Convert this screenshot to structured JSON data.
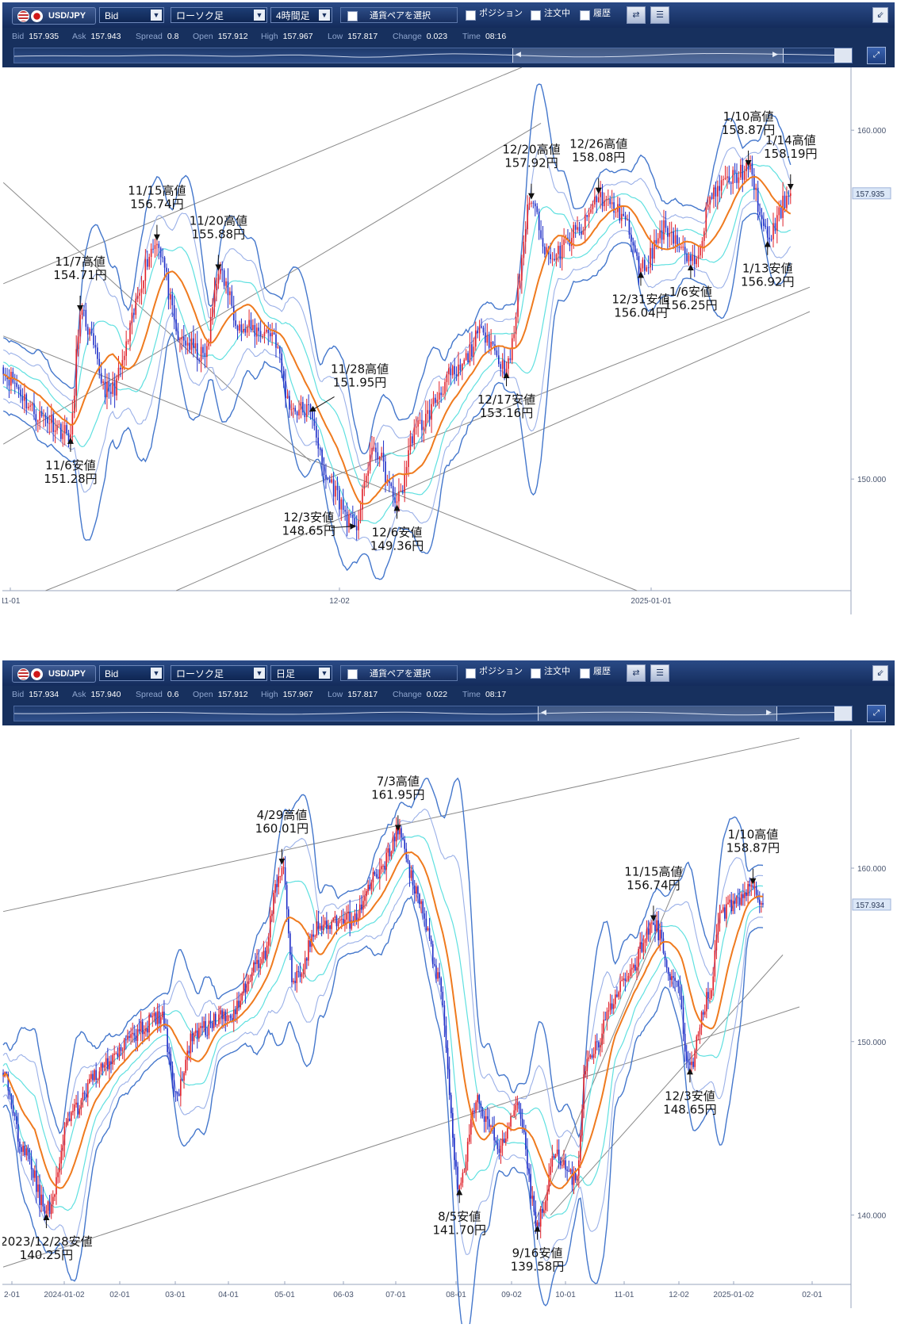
{
  "panels": [
    {
      "toolbar": {
        "pair": "USD/JPY",
        "price_type": "Bid",
        "chart_type": "ローソク足",
        "timeframe": "4時間足",
        "pair_select_button": "通貨ペアを選択",
        "checks": [
          "ポジション",
          "注文中",
          "履歴"
        ]
      },
      "quote": {
        "bid_label": "Bid",
        "bid": "157.935",
        "ask_label": "Ask",
        "ask": "157.943",
        "spread_label": "Spread",
        "spread": "0.8",
        "open_label": "Open",
        "open": "157.912",
        "high_label": "High",
        "high": "157.967",
        "low_label": "Low",
        "low": "157.817",
        "change_label": "Change",
        "change": "0.023",
        "time_label": "Time",
        "time": "08:16"
      },
      "current_price_label": "157.935"
    },
    {
      "toolbar": {
        "pair": "USD/JPY",
        "price_type": "Bid",
        "chart_type": "ローソク足",
        "timeframe": "日足",
        "pair_select_button": "通貨ペアを選択",
        "checks": [
          "ポジション",
          "注文中",
          "履歴"
        ]
      },
      "quote": {
        "bid_label": "Bid",
        "bid": "157.934",
        "ask_label": "Ask",
        "ask": "157.940",
        "spread_label": "Spread",
        "spread": "0.6",
        "open_label": "Open",
        "open": "157.912",
        "high_label": "High",
        "high": "157.967",
        "low_label": "Low",
        "low": "157.817",
        "change_label": "Change",
        "change": "0.022",
        "time_label": "Time",
        "time": "08:17"
      },
      "current_price_label": "157.934"
    }
  ],
  "colors": {
    "up_candle": "#e0202a",
    "down_candle": "#1f2fc8",
    "sma": "#ef7a1e",
    "band1": "#5fe0e0",
    "band2": "#9ab0e8",
    "band3": "#4477cc",
    "trendline": "#8a8a8a"
  },
  "chart_data": [
    {
      "type": "candlestick",
      "timeframe": "4時間足",
      "x_labels": [
        "11-01",
        "12-02",
        "2025-01-01"
      ],
      "y_ticks": [
        "160.000",
        "150.000"
      ],
      "ylim": [
        146.8,
        161.8
      ],
      "grid": false,
      "indicators": [
        "SMA",
        "±1σ",
        "±2σ",
        "±3σ bands"
      ],
      "anchors": [
        {
          "x": 0,
          "y": 153.0
        },
        {
          "x": 20,
          "y": 151.8
        },
        {
          "x": 35,
          "y": 151.28
        },
        {
          "x": 40,
          "y": 154.71
        },
        {
          "x": 55,
          "y": 152.5
        },
        {
          "x": 80,
          "y": 156.74
        },
        {
          "x": 92,
          "y": 154.0
        },
        {
          "x": 105,
          "y": 153.5
        },
        {
          "x": 112,
          "y": 155.88
        },
        {
          "x": 125,
          "y": 154.3
        },
        {
          "x": 140,
          "y": 154.2
        },
        {
          "x": 150,
          "y": 152.0
        },
        {
          "x": 160,
          "y": 151.95
        },
        {
          "x": 168,
          "y": 150.0
        },
        {
          "x": 183,
          "y": 148.65
        },
        {
          "x": 193,
          "y": 150.9
        },
        {
          "x": 205,
          "y": 149.36
        },
        {
          "x": 215,
          "y": 151.5
        },
        {
          "x": 235,
          "y": 153.0
        },
        {
          "x": 250,
          "y": 154.2
        },
        {
          "x": 262,
          "y": 153.16
        },
        {
          "x": 275,
          "y": 157.92
        },
        {
          "x": 285,
          "y": 156.3
        },
        {
          "x": 300,
          "y": 157.1
        },
        {
          "x": 310,
          "y": 158.08
        },
        {
          "x": 322,
          "y": 157.6
        },
        {
          "x": 332,
          "y": 156.04
        },
        {
          "x": 345,
          "y": 157.2
        },
        {
          "x": 358,
          "y": 156.25
        },
        {
          "x": 372,
          "y": 158.4
        },
        {
          "x": 388,
          "y": 158.87
        },
        {
          "x": 398,
          "y": 156.92
        },
        {
          "x": 410,
          "y": 158.19
        }
      ],
      "annotations": [
        {
          "label": "11/6安値",
          "value": "151.28円",
          "x": 35,
          "y": 151.28,
          "dir": "below"
        },
        {
          "label": "11/7高値",
          "value": "154.71円",
          "x": 40,
          "y": 154.71,
          "dir": "above"
        },
        {
          "label": "11/15高値",
          "value": "156.74円",
          "x": 80,
          "y": 156.74,
          "dir": "above"
        },
        {
          "label": "11/20高値",
          "value": "155.88円",
          "x": 112,
          "y": 155.88,
          "dir": "above"
        },
        {
          "label": "11/28高値",
          "value": "151.95円",
          "x": 160,
          "y": 151.95,
          "dir": "right"
        },
        {
          "label": "12/3安値",
          "value": "148.65円",
          "x": 183,
          "y": 148.65,
          "dir": "left"
        },
        {
          "label": "12/6安値",
          "value": "149.36円",
          "x": 205,
          "y": 149.36,
          "dir": "below"
        },
        {
          "label": "12/17安値",
          "value": "153.16円",
          "x": 262,
          "y": 153.16,
          "dir": "below"
        },
        {
          "label": "12/20高値",
          "value": "157.92円",
          "x": 275,
          "y": 157.92,
          "dir": "above"
        },
        {
          "label": "12/26高値",
          "value": "158.08円",
          "x": 310,
          "y": 158.08,
          "dir": "above"
        },
        {
          "label": "12/31安値",
          "value": "156.04円",
          "x": 332,
          "y": 156.04,
          "dir": "below"
        },
        {
          "label": "1/6安値",
          "value": "156.25円",
          "x": 358,
          "y": 156.25,
          "dir": "below"
        },
        {
          "label": "1/10高値",
          "value": "158.87円",
          "x": 388,
          "y": 158.87,
          "dir": "above"
        },
        {
          "label": "1/13安値",
          "value": "156.92円",
          "x": 398,
          "y": 156.92,
          "dir": "below"
        },
        {
          "label": "1/14高値",
          "value": "158.19円",
          "x": 410,
          "y": 158.19,
          "dir": "above"
        }
      ]
    },
    {
      "type": "candlestick",
      "timeframe": "日足",
      "x_labels": [
        "2-01",
        "2024-01-02",
        "02-01",
        "03-01",
        "04-01",
        "05-01",
        "06-03",
        "07-01",
        "08-01",
        "09-02",
        "10-01",
        "11-01",
        "12-02",
        "2025-01-02",
        "02-01"
      ],
      "y_ticks": [
        "160.000",
        "150.000",
        "140.000"
      ],
      "ylim": [
        136.0,
        168.0
      ],
      "grid": false,
      "indicators": [
        "SMA",
        "±1σ",
        "±2σ",
        "±3σ bands"
      ],
      "anchors": [
        {
          "x": 0,
          "y": 148.0
        },
        {
          "x": 12,
          "y": 144.0
        },
        {
          "x": 26,
          "y": 140.25
        },
        {
          "x": 42,
          "y": 146.0
        },
        {
          "x": 60,
          "y": 148.5
        },
        {
          "x": 78,
          "y": 150.5
        },
        {
          "x": 95,
          "y": 151.4
        },
        {
          "x": 105,
          "y": 147.0
        },
        {
          "x": 115,
          "y": 150.5
        },
        {
          "x": 135,
          "y": 151.5
        },
        {
          "x": 155,
          "y": 154.5
        },
        {
          "x": 168,
          "y": 160.01
        },
        {
          "x": 175,
          "y": 153.5
        },
        {
          "x": 190,
          "y": 156.5
        },
        {
          "x": 210,
          "y": 157.0
        },
        {
          "x": 225,
          "y": 159.5
        },
        {
          "x": 238,
          "y": 161.95
        },
        {
          "x": 250,
          "y": 158.5
        },
        {
          "x": 262,
          "y": 154.0
        },
        {
          "x": 275,
          "y": 141.7
        },
        {
          "x": 285,
          "y": 146.5
        },
        {
          "x": 300,
          "y": 144.0
        },
        {
          "x": 310,
          "y": 146.5
        },
        {
          "x": 322,
          "y": 139.58
        },
        {
          "x": 333,
          "y": 143.5
        },
        {
          "x": 345,
          "y": 142.0
        },
        {
          "x": 352,
          "y": 149.0
        },
        {
          "x": 375,
          "y": 153.5
        },
        {
          "x": 392,
          "y": 156.74
        },
        {
          "x": 405,
          "y": 153.5
        },
        {
          "x": 414,
          "y": 148.65
        },
        {
          "x": 425,
          "y": 152.5
        },
        {
          "x": 433,
          "y": 157.5
        },
        {
          "x": 452,
          "y": 158.87
        },
        {
          "x": 458,
          "y": 157.9
        }
      ],
      "annotations": [
        {
          "label": "2023/12/28安値",
          "value": "140.25円",
          "x": 26,
          "y": 140.25,
          "dir": "below"
        },
        {
          "label": "4/29高値",
          "value": "160.01円",
          "x": 168,
          "y": 160.01,
          "dir": "above"
        },
        {
          "label": "7/3高値",
          "value": "161.95円",
          "x": 238,
          "y": 161.95,
          "dir": "above"
        },
        {
          "label": "8/5安値",
          "value": "141.70円",
          "x": 275,
          "y": 141.7,
          "dir": "below"
        },
        {
          "label": "9/16安値",
          "value": "139.58円",
          "x": 322,
          "y": 139.58,
          "dir": "below"
        },
        {
          "label": "11/15高値",
          "value": "156.74円",
          "x": 392,
          "y": 156.74,
          "dir": "above"
        },
        {
          "label": "12/3安値",
          "value": "148.65円",
          "x": 414,
          "y": 148.65,
          "dir": "below"
        },
        {
          "label": "1/10高値",
          "value": "158.87円",
          "x": 452,
          "y": 158.87,
          "dir": "above"
        }
      ]
    }
  ]
}
